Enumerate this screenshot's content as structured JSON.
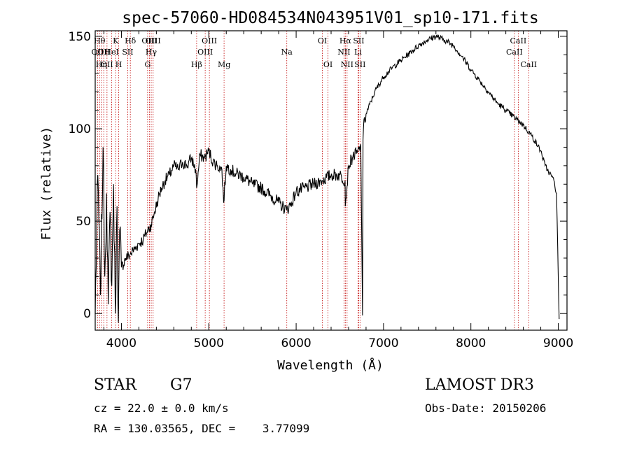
{
  "chart_data": {
    "type": "line",
    "title": "spec-57060-HD084534N043951V01_sp10-171.fits",
    "xlabel": "Wavelength (Å)",
    "ylabel": "Flux (relative)",
    "xlim": [
      3700,
      9100
    ],
    "ylim": [
      -9,
      153
    ],
    "xticks": [
      4000,
      5000,
      6000,
      7000,
      8000,
      9000
    ],
    "yticks": [
      0,
      50,
      100,
      150
    ],
    "series": [
      {
        "name": "spectrum",
        "x": [
          3700,
          3730,
          3760,
          3790,
          3810,
          3830,
          3850,
          3870,
          3890,
          3910,
          3930,
          3950,
          3965,
          3980,
          4000,
          4050,
          4100,
          4150,
          4200,
          4250,
          4300,
          4340,
          4380,
          4420,
          4460,
          4500,
          4550,
          4600,
          4650,
          4700,
          4750,
          4800,
          4850,
          4861,
          4900,
          4950,
          5000,
          5050,
          5100,
          5150,
          5170,
          5200,
          5250,
          5300,
          5400,
          5500,
          5600,
          5700,
          5800,
          5890,
          5950,
          6000,
          6100,
          6200,
          6300,
          6400,
          6500,
          6560,
          6563,
          6600,
          6650,
          6700,
          6740,
          6760,
          6765,
          6770,
          6800,
          6900,
          7000,
          7100,
          7200,
          7300,
          7400,
          7500,
          7600,
          7700,
          7800,
          7900,
          8000,
          8100,
          8200,
          8300,
          8400,
          8500,
          8600,
          8700,
          8800,
          8850,
          8900,
          8950,
          8980,
          9000,
          9010
        ],
        "y": [
          0,
          75,
          10,
          90,
          20,
          65,
          5,
          55,
          15,
          70,
          0,
          58,
          -5,
          45,
          25,
          30,
          32,
          35,
          38,
          40,
          45,
          48,
          55,
          62,
          68,
          72,
          75,
          80,
          78,
          82,
          80,
          84,
          78,
          68,
          86,
          84,
          88,
          82,
          80,
          78,
          60,
          80,
          78,
          76,
          74,
          70,
          68,
          64,
          60,
          56,
          60,
          66,
          68,
          70,
          72,
          75,
          75,
          72,
          58,
          80,
          85,
          87,
          90,
          -1,
          94,
          100,
          108,
          120,
          128,
          133,
          137,
          141,
          145,
          148,
          150,
          148,
          145,
          139,
          132,
          126,
          120,
          114,
          110,
          106,
          102,
          96,
          88,
          80,
          76,
          72,
          65,
          20,
          -3
        ]
      }
    ],
    "lines": [
      {
        "w": 3727,
        "label": "OII",
        "row": 2
      },
      {
        "w": 3750,
        "label": "Hθ",
        "row": 1
      },
      {
        "w": 3771,
        "label": "Hη",
        "row": 3
      },
      {
        "w": 3798,
        "label": "OII",
        "row": 2
      },
      {
        "w": 3835,
        "label": "OII",
        "row": 3
      },
      {
        "w": 3889,
        "label": "HeI",
        "row": 2
      },
      {
        "w": 3934,
        "label": "K",
        "row": 1
      },
      {
        "w": 3969,
        "label": "H",
        "row": 3
      },
      {
        "w": 4072,
        "label": "SII",
        "row": 2
      },
      {
        "w": 4102,
        "label": "Hδ",
        "row": 1
      },
      {
        "w": 4300,
        "label": "G",
        "row": 3
      },
      {
        "w": 4320,
        "label": "OIII",
        "row": 1
      },
      {
        "w": 4341,
        "label": "Hγ",
        "row": 2
      },
      {
        "w": 4363,
        "label": "OIII",
        "row": 1
      },
      {
        "w": 4861,
        "label": "Hβ",
        "row": 3
      },
      {
        "w": 4959,
        "label": "OIII",
        "row": 2
      },
      {
        "w": 5007,
        "label": "OIII",
        "row": 1
      },
      {
        "w": 5175,
        "label": "Mg",
        "row": 3
      },
      {
        "w": 5893,
        "label": "Na",
        "row": 2
      },
      {
        "w": 6300,
        "label": "OI",
        "row": 1
      },
      {
        "w": 6364,
        "label": "OI",
        "row": 3
      },
      {
        "w": 6548,
        "label": "NII",
        "row": 2
      },
      {
        "w": 6563,
        "label": "Hα",
        "row": 1
      },
      {
        "w": 6583,
        "label": "NII",
        "row": 3
      },
      {
        "w": 6708,
        "label": "Li",
        "row": 2
      },
      {
        "w": 6716,
        "label": "SII",
        "row": 1
      },
      {
        "w": 6731,
        "label": "SII",
        "row": 3
      },
      {
        "w": 8498,
        "label": "CaII",
        "row": 2
      },
      {
        "w": 8542,
        "label": "CaII",
        "row": 1
      },
      {
        "w": 8662,
        "label": "CaII",
        "row": 3
      }
    ]
  },
  "info": {
    "object_type": "STAR",
    "subclass": "G7",
    "survey": "LAMOST DR3",
    "cz": "cz = 22.0 ± 0.0 km/s",
    "obs_date": "Obs-Date: 20150206",
    "coords": "RA = 130.03565, DEC =    3.77099"
  }
}
